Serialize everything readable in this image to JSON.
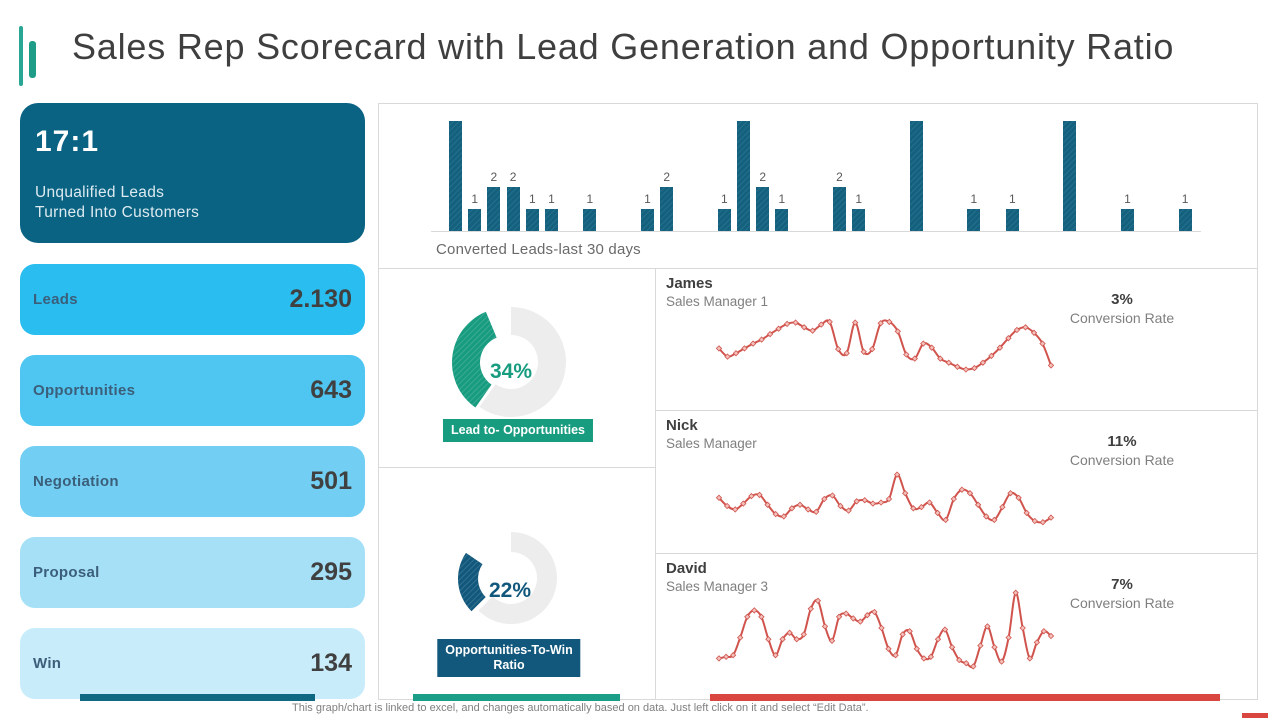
{
  "title": "Sales Rep Scorecard with Lead Generation and Opportunity Ratio",
  "colors": {
    "accent_teal": "#1d9c88",
    "dark_teal_card": "#0a6383",
    "bar_fill": "#15607c",
    "gauge_green": "#189c80",
    "gauge_navy": "#11587c",
    "line_red": "#d0544d",
    "bottom_red": "#d9453f",
    "ring_gray": "#ededed",
    "divider": "#d9d9d9"
  },
  "ratio_card": {
    "value": "17:1",
    "lines": [
      "Unqualified Leads",
      "Turned Into Customers"
    ]
  },
  "funnel": [
    {
      "label": "Leads",
      "value": "2.130",
      "bg": "#29bdf0"
    },
    {
      "label": "Opportunities",
      "value": "643",
      "bg": "#4fc6f1"
    },
    {
      "label": "Negotiation",
      "value": "501",
      "bg": "#72cff3"
    },
    {
      "label": "Proposal",
      "value": "295",
      "bg": "#a5e0f7"
    },
    {
      "label": "Win",
      "value": "134",
      "bg": "#c9ecfa"
    }
  ],
  "chart_data": [
    {
      "type": "bar",
      "title": "Converted Leads-last 30 days",
      "values": [
        5,
        1,
        2,
        2,
        1,
        1,
        0,
        1,
        0,
        0,
        1,
        2,
        0,
        0,
        1,
        5,
        2,
        1,
        0,
        0,
        2,
        1,
        0,
        0,
        5,
        0,
        0,
        1,
        0,
        1,
        0,
        0,
        5,
        0,
        0,
        1,
        0,
        0,
        1
      ],
      "note": "value labels shown only for bars of 1 or 2; tall bars unlabeled",
      "bar_color": "#15607c"
    },
    {
      "type": "pie",
      "name": "Lead to- Opportunities",
      "percent": 34,
      "percent_label": "34%",
      "color": "#189c80"
    },
    {
      "type": "pie",
      "name": "Opportunities-To-Win Ratio",
      "label_lines": [
        "Opportunities-To-Win",
        "Ratio"
      ],
      "percent": 22,
      "percent_label": "22%",
      "color": "#11587c"
    },
    {
      "type": "line",
      "name": "James",
      "role": "Sales Manager 1",
      "conversion_rate": "3%",
      "rate_label": "Conversion Rate",
      "color": "#d0544d",
      "values": [
        45,
        33,
        38,
        45,
        52,
        58,
        66,
        74,
        81,
        83,
        76,
        71,
        80,
        84,
        44,
        38,
        83,
        40,
        44,
        82,
        84,
        70,
        36,
        30,
        52,
        46,
        30,
        24,
        18,
        14,
        16,
        24,
        34,
        46,
        60,
        72,
        76,
        68,
        52,
        20
      ]
    },
    {
      "type": "line",
      "name": "Nick",
      "role": "Sales Manager",
      "conversion_rate": "11%",
      "rate_label": "Conversion Rate",
      "color": "#d0544d",
      "values": [
        52,
        38,
        32,
        42,
        55,
        57,
        40,
        24,
        20,
        34,
        40,
        32,
        28,
        50,
        56,
        38,
        30,
        46,
        48,
        42,
        44,
        50,
        92,
        60,
        34,
        36,
        44,
        26,
        14,
        50,
        66,
        60,
        40,
        20,
        14,
        36,
        60,
        52,
        26,
        12,
        10,
        18
      ]
    },
    {
      "type": "line",
      "name": "David",
      "role": "Sales Manager 3",
      "conversion_rate": "7%",
      "rate_label": "Conversion Rate",
      "color": "#d0544d",
      "values": [
        12,
        14,
        16,
        38,
        64,
        72,
        64,
        36,
        16,
        36,
        44,
        36,
        42,
        74,
        84,
        52,
        34,
        64,
        68,
        62,
        58,
        66,
        70,
        50,
        24,
        16,
        42,
        46,
        24,
        12,
        14,
        36,
        48,
        26,
        10,
        6,
        2,
        28,
        52,
        26,
        8,
        38,
        94,
        50,
        12,
        32,
        46,
        40
      ]
    }
  ],
  "footer": "This graph/chart is linked to excel, and changes automatically based on data. Just left click on it and select “Edit Data”."
}
